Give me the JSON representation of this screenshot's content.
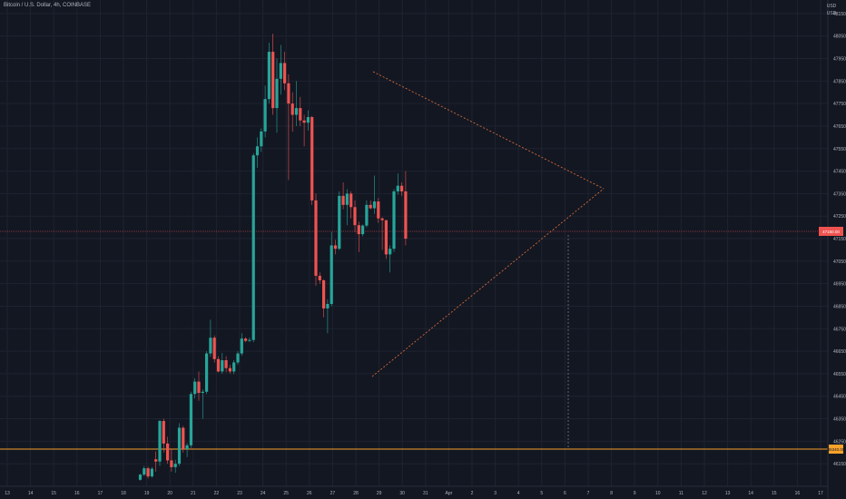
{
  "header": {
    "symbol_title": "Bitcoin / U.S. Dollar, 4h, COINBASE",
    "currency_lines": [
      "USD",
      "USD"
    ]
  },
  "colors": {
    "background": "#131722",
    "grid": "#1f2330",
    "up": "#26a69a",
    "down": "#ef5350",
    "trendline": "#e8733a",
    "support": "#f7a22b",
    "axis_text": "#b2b5be"
  },
  "chart_data": {
    "type": "candlestick",
    "title": "Bitcoin / U.S. Dollar, 4h, COINBASE",
    "ylim": [
      46050,
      48210
    ],
    "y_ticks": [
      48150,
      48050,
      47950,
      47850,
      47750,
      47650,
      47550,
      47450,
      47350,
      47250,
      47150,
      47050,
      46950,
      46850,
      46750,
      46650,
      46550,
      46450,
      46350,
      46250,
      46150
    ],
    "x_ticks": [
      "13",
      "14",
      "15",
      "16",
      "17",
      "18",
      "19",
      "20",
      "21",
      "22",
      "23",
      "24",
      "25",
      "26",
      "27",
      "28",
      "29",
      "30",
      "31",
      "Apr",
      "2",
      "3",
      "4",
      "5",
      "6",
      "7",
      "8",
      "9",
      "10",
      "11",
      "12",
      "13",
      "14",
      "15",
      "16",
      "17"
    ],
    "candles": [
      [
        46079,
        46106,
        46075,
        46102
      ],
      [
        46102,
        46140,
        46095,
        46130
      ],
      [
        46130,
        46137,
        46085,
        46094
      ],
      [
        46094,
        46136,
        46088,
        46128
      ],
      [
        46170,
        46205,
        46115,
        46160
      ],
      [
        46160,
        46345,
        46140,
        46340
      ],
      [
        46340,
        46350,
        46200,
        46240
      ],
      [
        46240,
        46270,
        46150,
        46165
      ],
      [
        46165,
        46215,
        46115,
        46135
      ],
      [
        46135,
        46168,
        46110,
        46150
      ],
      [
        46150,
        46330,
        46140,
        46310
      ],
      [
        46310,
        46318,
        46200,
        46215
      ],
      [
        46215,
        46242,
        46180,
        46232
      ],
      [
        46232,
        46470,
        46220,
        46460
      ],
      [
        46460,
        46530,
        46440,
        46515
      ],
      [
        46515,
        46560,
        46430,
        46465
      ],
      [
        46465,
        46480,
        46350,
        46470
      ],
      [
        46470,
        46650,
        46460,
        46640
      ],
      [
        46640,
        46790,
        46625,
        46710
      ],
      [
        46710,
        46720,
        46600,
        46615
      ],
      [
        46615,
        46628,
        46556,
        46560
      ],
      [
        46560,
        46642,
        46550,
        46610
      ],
      [
        46610,
        46628,
        46556,
        46575
      ],
      [
        46575,
        46590,
        46550,
        46560
      ],
      [
        46560,
        46610,
        46548,
        46600
      ],
      [
        46600,
        46650,
        46590,
        46640
      ],
      [
        46640,
        46730,
        46630,
        46706
      ],
      [
        46706,
        46712,
        46690,
        46696
      ],
      [
        46696,
        46710,
        46690,
        46700
      ],
      [
        46700,
        47530,
        46690,
        47520
      ],
      [
        47520,
        47600,
        47465,
        47560
      ],
      [
        47560,
        47640,
        47535,
        47626
      ],
      [
        47626,
        47830,
        47600,
        47770
      ],
      [
        47770,
        48020,
        47750,
        47980
      ],
      [
        47980,
        48060,
        47700,
        47730
      ],
      [
        47730,
        47950,
        47620,
        47860
      ],
      [
        47860,
        48010,
        47790,
        47930
      ],
      [
        47930,
        47980,
        47810,
        47840
      ],
      [
        47840,
        47880,
        47410,
        47750
      ],
      [
        47750,
        47800,
        47625,
        47700
      ],
      [
        47700,
        47850,
        47650,
        47730
      ],
      [
        47730,
        47780,
        47650,
        47675
      ],
      [
        47675,
        47700,
        47560,
        47665
      ],
      [
        47665,
        47720,
        47630,
        47690
      ],
      [
        47690,
        47695,
        47300,
        47320
      ],
      [
        47320,
        47350,
        46940,
        46985
      ],
      [
        46985,
        47000,
        46950,
        46965
      ],
      [
        46965,
        46970,
        46800,
        46840
      ],
      [
        46840,
        46880,
        46730,
        46860
      ],
      [
        46860,
        47180,
        46850,
        47120
      ],
      [
        47120,
        47145,
        47080,
        47105
      ],
      [
        47105,
        47360,
        47100,
        47340
      ],
      [
        47340,
        47400,
        47280,
        47300
      ],
      [
        47300,
        47370,
        47210,
        47350
      ],
      [
        47350,
        47360,
        47240,
        47290
      ],
      [
        47290,
        47320,
        47180,
        47210
      ],
      [
        47210,
        47225,
        47090,
        47170
      ],
      [
        47170,
        47213,
        47160,
        47208
      ],
      [
        47208,
        47320,
        47200,
        47300
      ],
      [
        47300,
        47320,
        47280,
        47285
      ],
      [
        47285,
        47430,
        47260,
        47315
      ],
      [
        47315,
        47330,
        47220,
        47240
      ],
      [
        47240,
        47245,
        47100,
        47232
      ],
      [
        47232,
        47233,
        47060,
        47080
      ],
      [
        47080,
        47120,
        47000,
        47105
      ],
      [
        47105,
        47370,
        47090,
        47360
      ],
      [
        47360,
        47440,
        47345,
        47385
      ],
      [
        47385,
        47400,
        47340,
        47360
      ],
      [
        47360,
        47450,
        47120,
        47150
      ]
    ],
    "annotations": {
      "descending_trendline": "upper triangle line",
      "ascending_trendline": "lower triangle line",
      "support_level": 46340,
      "current_price_level": 47150
    }
  }
}
